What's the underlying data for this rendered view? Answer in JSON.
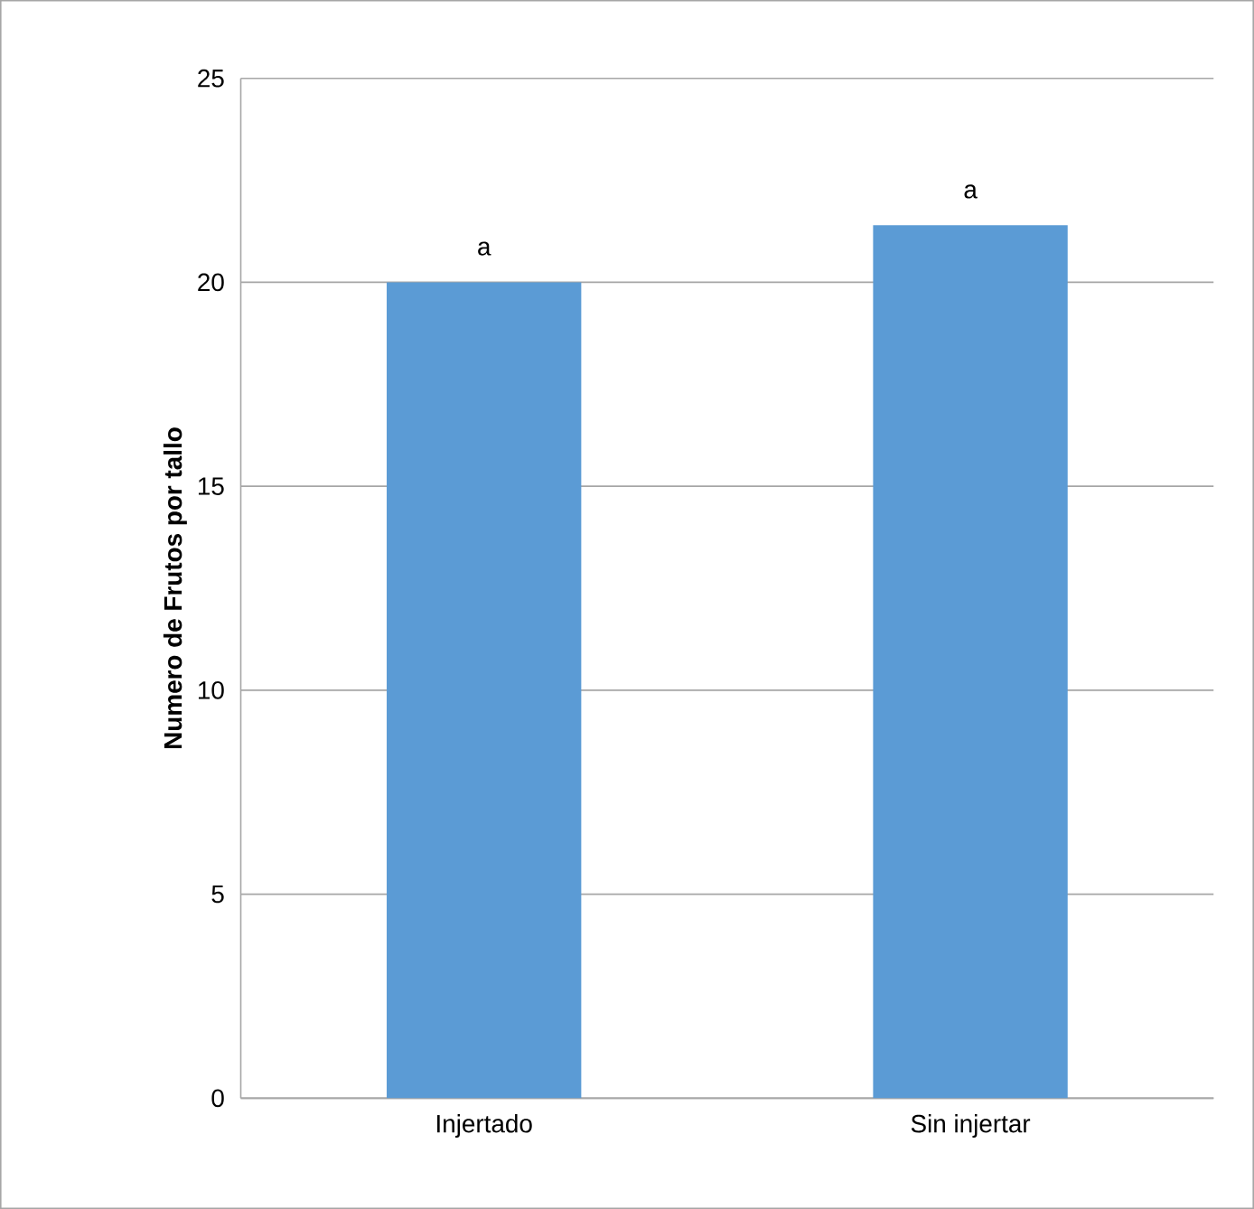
{
  "chart_data": {
    "type": "bar",
    "ylabel": "Numero de Frutos por tallo",
    "categories": [
      "Injertado",
      "Sin injertar"
    ],
    "values": [
      20,
      21.4
    ],
    "color": "#5b9bd5",
    "ylim": [
      0,
      25
    ],
    "yticks": [
      0,
      5,
      10,
      15,
      20,
      25
    ],
    "grid": "y",
    "annotations": [
      {
        "text": "a",
        "x": "Injertado",
        "y": 20
      },
      {
        "text": "a",
        "x": "Sin injertar",
        "y": 21.4
      }
    ]
  }
}
